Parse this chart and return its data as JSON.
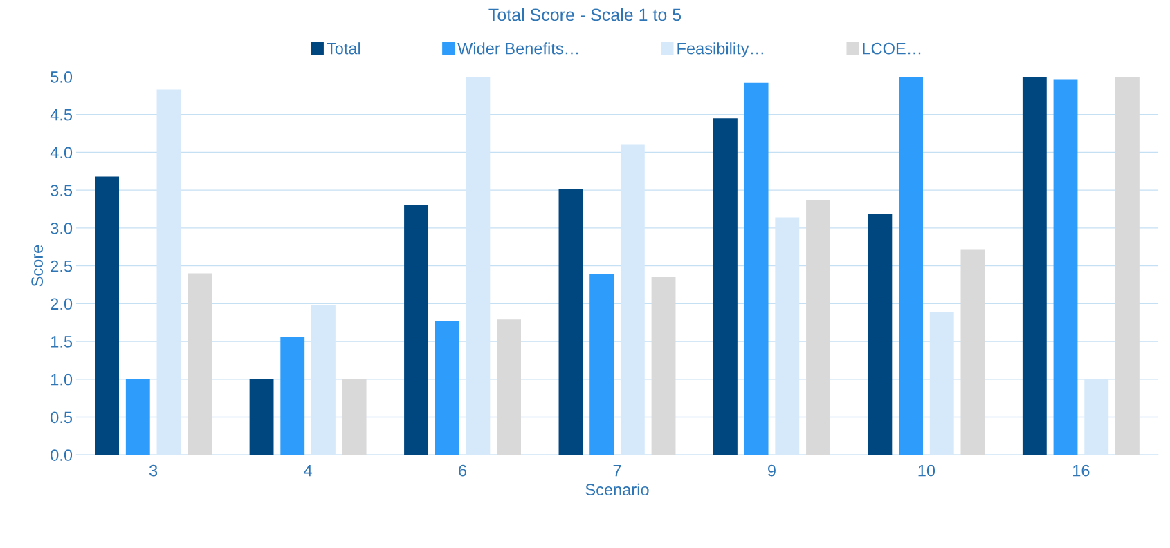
{
  "chart_data": {
    "type": "bar",
    "title": "Total Score - Scale 1 to 5",
    "xlabel": "Scenario",
    "ylabel": "Score",
    "categories": [
      "3",
      "4",
      "6",
      "7",
      "9",
      "10",
      "16"
    ],
    "series": [
      {
        "name": "Total",
        "color": "#00467f",
        "values": [
          3.68,
          1.0,
          3.3,
          3.51,
          4.45,
          3.19,
          5.0
        ]
      },
      {
        "name": "Wider Benefits…",
        "color": "#2e9cfa",
        "values": [
          1.0,
          1.56,
          1.77,
          2.39,
          4.92,
          5.0,
          4.96
        ]
      },
      {
        "name": "Feasibility…",
        "color": "#d5e9fb",
        "values": [
          4.83,
          1.98,
          5.0,
          4.1,
          3.14,
          1.89,
          1.0
        ]
      },
      {
        "name": "LCOE…",
        "color": "#d9d9d9",
        "values": [
          2.4,
          1.0,
          1.79,
          2.35,
          3.37,
          2.71,
          5.0
        ]
      }
    ],
    "ylim": [
      0,
      5
    ],
    "yticks": [
      {
        "value": 0,
        "label": "0.0"
      },
      {
        "value": 0.5,
        "label": "0.5"
      },
      {
        "value": 1,
        "label": "1.0"
      },
      {
        "value": 1.5,
        "label": "1.5"
      },
      {
        "value": 2,
        "label": "2.0"
      },
      {
        "value": 2.5,
        "label": "2.5"
      },
      {
        "value": 3,
        "label": "3.0"
      },
      {
        "value": 3.5,
        "label": "3.5"
      },
      {
        "value": 4,
        "label": "4.0"
      },
      {
        "value": 4.5,
        "label": "4.5"
      },
      {
        "value": 5,
        "label": "5.0"
      }
    ],
    "grid": "y",
    "legend": "top"
  }
}
